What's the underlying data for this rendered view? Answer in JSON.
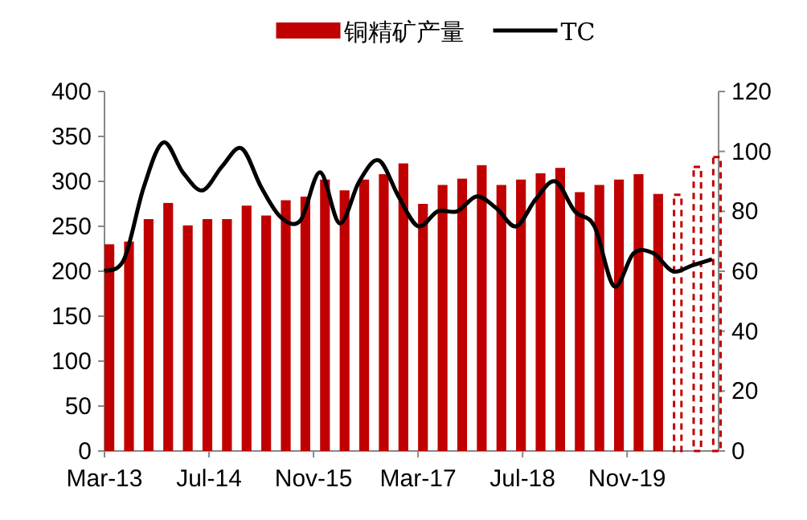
{
  "chart_data": {
    "type": "bar",
    "x": [
      "2013-03",
      "2013-06",
      "2013-09",
      "2013-12",
      "2014-03",
      "2014-06",
      "2014-09",
      "2014-12",
      "2015-03",
      "2015-06",
      "2015-09",
      "2015-12",
      "2016-03",
      "2016-06",
      "2016-09",
      "2016-12",
      "2017-03",
      "2017-06",
      "2017-09",
      "2017-12",
      "2018-03",
      "2018-06",
      "2018-09",
      "2018-12",
      "2019-03",
      "2019-06",
      "2019-09",
      "2019-12",
      "2020-03",
      "2020-06",
      "2020-09",
      "2020-12"
    ],
    "series": [
      {
        "name": "铜精矿产量",
        "color": "#c00000",
        "values": [
          230,
          233,
          258,
          276,
          251,
          258,
          258,
          273,
          262,
          279,
          283,
          302,
          290,
          302,
          308,
          320,
          275,
          296,
          303,
          318,
          296,
          302,
          309,
          315,
          288,
          296,
          302,
          308,
          286,
          null,
          null,
          null
        ]
      },
      {
        "color": "#c00000",
        "line_style": "dashed",
        "values": [
          null,
          null,
          null,
          null,
          null,
          null,
          null,
          null,
          null,
          null,
          null,
          null,
          null,
          null,
          null,
          null,
          null,
          null,
          null,
          null,
          null,
          null,
          null,
          null,
          null,
          null,
          null,
          null,
          null,
          285,
          316,
          327
        ]
      },
      {
        "name": "TC",
        "type": "line",
        "axis": "y2",
        "color": "#000000",
        "values": [
          60,
          64,
          88,
          103,
          93,
          87,
          95,
          101,
          88,
          78,
          77,
          93,
          76,
          90,
          97,
          85,
          75,
          80,
          80,
          85,
          81,
          75,
          84,
          90,
          80,
          75,
          55,
          66,
          66,
          60,
          62,
          64
        ]
      }
    ],
    "xlim": [
      "2013-03",
      "2021-01"
    ],
    "xticks": [
      {
        "value": "2013-03",
        "label": "Mar-13"
      },
      {
        "value": "2014-07",
        "label": "Jul-14"
      },
      {
        "value": "2015-11",
        "label": "Nov-15"
      },
      {
        "value": "2017-03",
        "label": "Mar-17"
      },
      {
        "value": "2018-07",
        "label": "Jul-18"
      },
      {
        "value": "2019-11",
        "label": "Nov-19"
      }
    ],
    "ylim": [
      0,
      400
    ],
    "yticks": [
      0,
      50,
      100,
      150,
      200,
      250,
      300,
      350,
      400
    ],
    "y2lim": [
      0,
      120
    ],
    "y2ticks": [
      0,
      20,
      40,
      60,
      80,
      100,
      120
    ],
    "legend": "top",
    "marker": "none"
  }
}
